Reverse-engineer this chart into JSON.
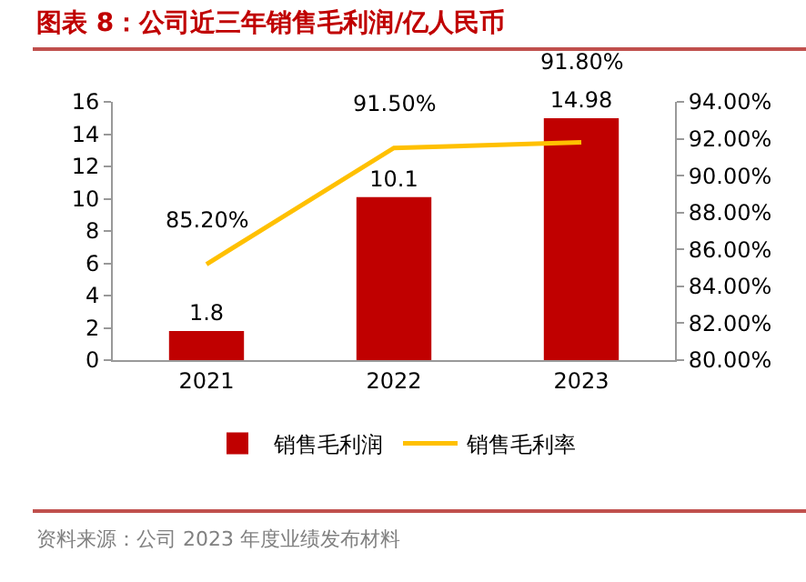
{
  "chart_data": {
    "type": "bar",
    "title": "图表 8：公司近三年销售毛利润/亿人民币",
    "categories": [
      "2021",
      "2022",
      "2023"
    ],
    "series": [
      {
        "name": "销售毛利润",
        "color": "#c00000",
        "values": [
          1.8,
          10.1,
          14.98
        ],
        "value_labels": [
          "1.8",
          "10.1",
          "14.98"
        ]
      },
      {
        "name": "销售毛利率",
        "type": "line",
        "axis": "y2",
        "color": "#ffc000",
        "values": [
          85.2,
          91.5,
          91.8
        ],
        "value_labels": [
          "85.20%",
          "91.50%",
          "91.80%"
        ]
      }
    ],
    "ylim": [
      0,
      16
    ],
    "yticks": [
      0,
      2,
      4,
      6,
      8,
      10,
      12,
      14,
      16
    ],
    "y2lim": [
      80,
      94
    ],
    "y2ticks": [
      {
        "value": 80,
        "label": "80.00%"
      },
      {
        "value": 82,
        "label": "82.00%"
      },
      {
        "value": 84,
        "label": "84.00%"
      },
      {
        "value": 86,
        "label": "86.00%"
      },
      {
        "value": 88,
        "label": "88.00%"
      },
      {
        "value": 90,
        "label": "90.00%"
      },
      {
        "value": 92,
        "label": "92.00%"
      },
      {
        "value": 94,
        "label": "94.00%"
      }
    ],
    "grid": false,
    "legend": "bottom",
    "marker": "none",
    "line_style": "solid",
    "annotations": [
      "资料来源：公司 2023 年度业绩发布材料"
    ]
  }
}
